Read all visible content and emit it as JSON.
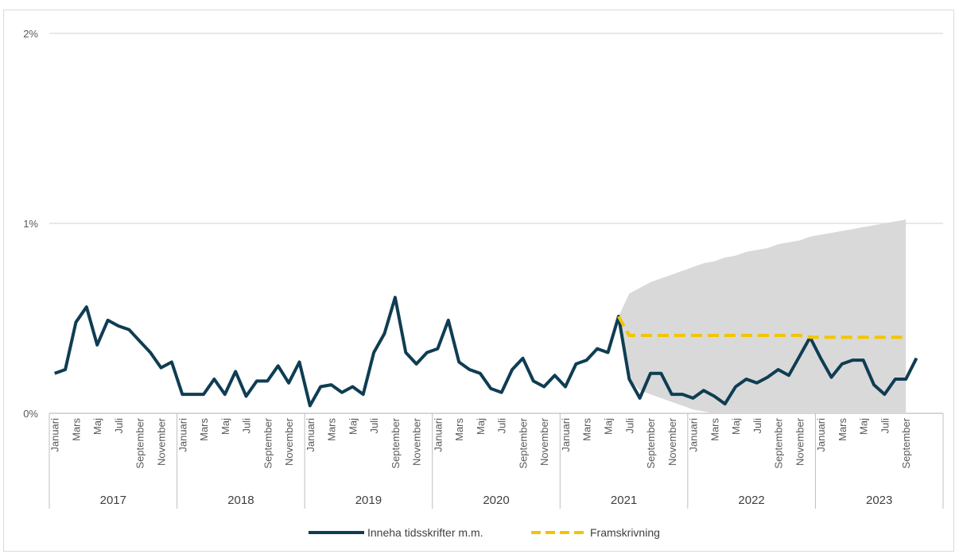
{
  "chart_data": {
    "type": "line",
    "y_ticks": [
      "0%",
      "1%",
      "2%"
    ],
    "ylim": [
      0,
      2
    ],
    "month_labels": [
      "Januari",
      "Mars",
      "Maj",
      "Juli",
      "September",
      "November"
    ],
    "years": [
      "2017",
      "2018",
      "2019",
      "2020",
      "2021",
      "2022",
      "2023"
    ],
    "grid": "horizontal",
    "legend_position": "bottom",
    "series": [
      {
        "name": "Inneha tidsskrifter m.m.",
        "color": "#0f3d53",
        "style": "solid",
        "start": "2017-01",
        "values": [
          0.21,
          0.23,
          0.48,
          0.56,
          0.36,
          0.49,
          0.46,
          0.44,
          0.38,
          0.32,
          0.24,
          0.27,
          0.1,
          0.1,
          0.1,
          0.18,
          0.1,
          0.22,
          0.09,
          0.17,
          0.17,
          0.25,
          0.16,
          0.27,
          0.04,
          0.14,
          0.15,
          0.11,
          0.14,
          0.1,
          0.32,
          0.42,
          0.61,
          0.32,
          0.26,
          0.32,
          0.34,
          0.49,
          0.27,
          0.23,
          0.21,
          0.13,
          0.11,
          0.23,
          0.29,
          0.17,
          0.14,
          0.2,
          0.14,
          0.26,
          0.28,
          0.34,
          0.32,
          0.51,
          0.18,
          0.08,
          0.21,
          0.21,
          0.1,
          0.1,
          0.08,
          0.12,
          0.09,
          0.05,
          0.14,
          0.18,
          0.16,
          0.19,
          0.23,
          0.2,
          0.3,
          0.4,
          0.29,
          0.19,
          0.26,
          0.28,
          0.28,
          0.15,
          0.1,
          0.18,
          0.18,
          0.29
        ]
      },
      {
        "name": "Framskrivning",
        "color": "#f2c500",
        "style": "dashed",
        "start": "2021-06",
        "values": [
          0.51,
          0.41,
          0.41,
          0.41,
          0.41,
          0.41,
          0.41,
          0.41,
          0.41,
          0.41,
          0.41,
          0.41,
          0.41,
          0.41,
          0.41,
          0.41,
          0.41,
          0.41,
          0.4,
          0.4,
          0.4,
          0.4,
          0.4,
          0.4,
          0.4,
          0.4,
          0.4,
          0.4
        ]
      }
    ],
    "interval": {
      "color": "#d9d9d9",
      "start": "2021-06",
      "upper": [
        0.51,
        0.63,
        0.66,
        0.69,
        0.71,
        0.73,
        0.75,
        0.77,
        0.79,
        0.8,
        0.82,
        0.83,
        0.85,
        0.86,
        0.87,
        0.89,
        0.9,
        0.91,
        0.93,
        0.94,
        0.95,
        0.96,
        0.97,
        0.98,
        0.99,
        1.0,
        1.01,
        1.02
      ],
      "lower": [
        0.51,
        0.18,
        0.12,
        0.1,
        0.08,
        0.06,
        0.04,
        0.02,
        0.01,
        0.0,
        0.0,
        0.0,
        0.0,
        0.0,
        0.0,
        0.0,
        0.0,
        0.0,
        0.0,
        0.0,
        0.0,
        0.0,
        0.0,
        0.0,
        0.0,
        0.0,
        0.0,
        0.0
      ]
    }
  }
}
